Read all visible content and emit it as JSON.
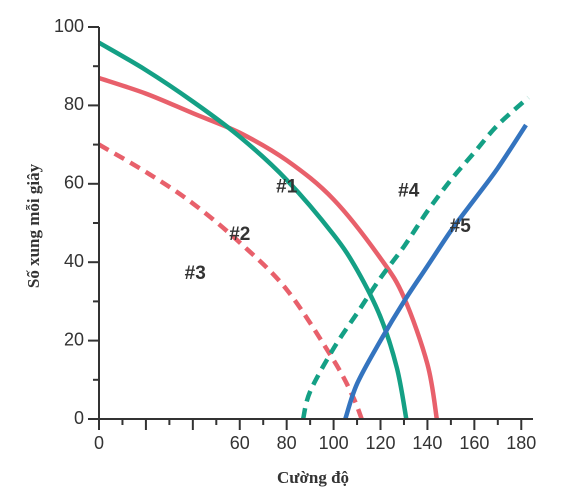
{
  "chart_data": {
    "type": "line",
    "title": "",
    "xlabel": "Cường độ",
    "ylabel": "Số xung mỗi giây",
    "xlim": [
      0,
      185
    ],
    "ylim": [
      0,
      100
    ],
    "xticks": [
      0,
      20,
      40,
      60,
      80,
      100,
      120,
      140,
      160,
      180
    ],
    "xtick_labels": [
      "0",
      "",
      "",
      "60",
      "80",
      "100",
      "120",
      "140",
      "160",
      "180"
    ],
    "yticks": [
      0,
      20,
      40,
      60,
      80,
      100
    ],
    "ytick_labels": [
      "0",
      "20",
      "40",
      "60",
      "80",
      "100"
    ],
    "grid": false,
    "series": [
      {
        "name": "#1",
        "color": "#e8606b",
        "dash": "solid",
        "label_at": [
          80,
          59
        ],
        "points": [
          [
            0,
            87
          ],
          [
            20,
            83
          ],
          [
            40,
            78
          ],
          [
            60,
            73
          ],
          [
            80,
            66
          ],
          [
            100,
            56
          ],
          [
            120,
            41
          ],
          [
            130,
            31
          ],
          [
            140,
            14
          ],
          [
            144,
            0
          ]
        ]
      },
      {
        "name": "#2",
        "color": "#14a085",
        "dash": "solid",
        "label_at": [
          60,
          47
        ],
        "points": [
          [
            0,
            96
          ],
          [
            20,
            89
          ],
          [
            40,
            81
          ],
          [
            60,
            72
          ],
          [
            80,
            61
          ],
          [
            100,
            47
          ],
          [
            110,
            38
          ],
          [
            120,
            26
          ],
          [
            127,
            13
          ],
          [
            131,
            0
          ]
        ]
      },
      {
        "name": "#3",
        "color": "#e8606b",
        "dash": "dashed",
        "label_at": [
          41,
          37
        ],
        "points": [
          [
            0,
            70
          ],
          [
            20,
            63
          ],
          [
            40,
            55
          ],
          [
            60,
            45
          ],
          [
            80,
            33
          ],
          [
            100,
            15
          ],
          [
            108,
            6
          ],
          [
            112,
            0
          ]
        ]
      },
      {
        "name": "#4",
        "color": "#14a085",
        "dash": "dashed",
        "label_at": [
          132,
          58
        ],
        "points": [
          [
            87,
            0
          ],
          [
            90,
            7
          ],
          [
            100,
            18
          ],
          [
            110,
            27
          ],
          [
            120,
            36
          ],
          [
            130,
            44
          ],
          [
            140,
            53
          ],
          [
            150,
            61
          ],
          [
            160,
            68
          ],
          [
            170,
            75
          ],
          [
            183,
            82
          ]
        ]
      },
      {
        "name": "#5",
        "color": "#3474bf",
        "dash": "solid",
        "label_at": [
          154,
          49
        ],
        "points": [
          [
            105,
            0
          ],
          [
            110,
            9
          ],
          [
            120,
            20
          ],
          [
            130,
            30
          ],
          [
            140,
            39
          ],
          [
            150,
            48
          ],
          [
            160,
            56
          ],
          [
            170,
            64
          ],
          [
            182,
            75
          ]
        ]
      }
    ]
  }
}
